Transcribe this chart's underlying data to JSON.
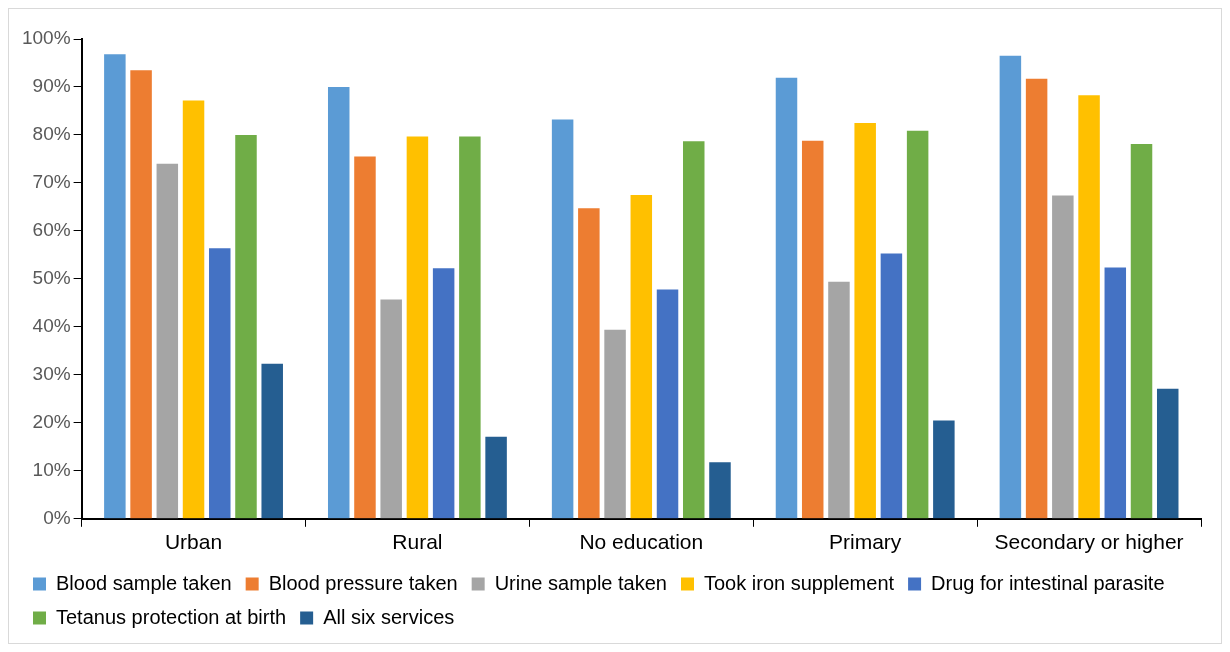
{
  "chart_data": {
    "type": "bar",
    "categories": [
      "Urban",
      "Rural",
      "No education",
      "Primary",
      "Secondary or higher"
    ],
    "series": [
      {
        "name": "Blood sample taken",
        "color": "#5b9bd5",
        "values": [
          96.8,
          90.0,
          83.2,
          91.9,
          96.5
        ]
      },
      {
        "name": "Blood pressure taken",
        "color": "#ed7d31",
        "values": [
          93.5,
          75.5,
          64.7,
          78.8,
          91.7
        ]
      },
      {
        "name": "Urine sample taken",
        "color": "#a5a5a5",
        "values": [
          74.0,
          45.7,
          39.4,
          49.4,
          67.4
        ]
      },
      {
        "name": "Took iron supplement",
        "color": "#ffc000",
        "values": [
          87.2,
          79.7,
          67.5,
          82.5,
          88.3
        ]
      },
      {
        "name": "Drug for intestinal parasite",
        "color": "#4472c4",
        "values": [
          56.4,
          52.2,
          47.8,
          55.3,
          52.4
        ]
      },
      {
        "name": "Tetanus protection at birth",
        "color": "#70ad47",
        "values": [
          80.0,
          79.7,
          78.7,
          80.9,
          78.1
        ]
      },
      {
        "name": "All six services",
        "color": "#255e91",
        "values": [
          32.3,
          17.1,
          11.8,
          20.5,
          27.1
        ]
      }
    ],
    "ylim": [
      0,
      100
    ],
    "yticks": [
      {
        "value": 0,
        "label": "0%"
      },
      {
        "value": 10,
        "label": "10%"
      },
      {
        "value": 20,
        "label": "20%"
      },
      {
        "value": 30,
        "label": "30%"
      },
      {
        "value": 40,
        "label": "40%"
      },
      {
        "value": 50,
        "label": "50%"
      },
      {
        "value": 60,
        "label": "60%"
      },
      {
        "value": 70,
        "label": "70%"
      },
      {
        "value": 80,
        "label": "80%"
      },
      {
        "value": 90,
        "label": "90%"
      },
      {
        "value": 100,
        "label": "100%"
      }
    ],
    "grid": false,
    "legend": "bottom"
  }
}
